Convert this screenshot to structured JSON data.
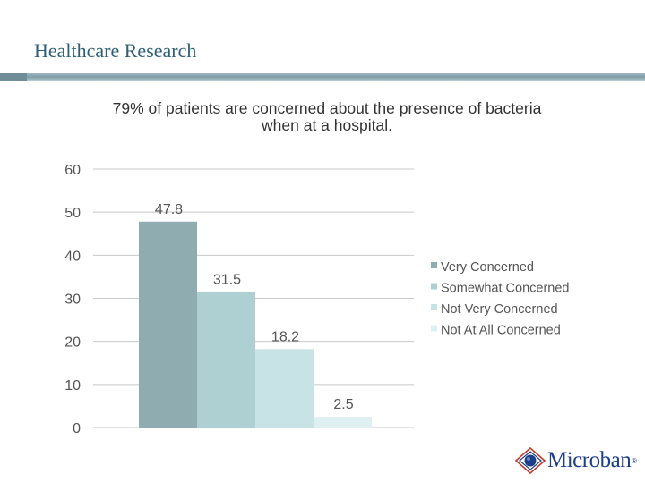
{
  "header": {
    "title": "Healthcare Research"
  },
  "logo": {
    "name": "Microban",
    "reg_mark": "®"
  },
  "colors": {
    "grid": "#c8c8c8",
    "axis_text": "#555555",
    "header_text": "#2f5f77"
  },
  "chart_data": {
    "type": "bar",
    "title": "79% of patients are concerned about the presence of bacteria when at a hospital.",
    "categories": [
      "Very Concerned",
      "Somewhat Concerned",
      "Not Very Concerned",
      "Not At All Concerned"
    ],
    "values": [
      47.8,
      31.5,
      18.2,
      2.5
    ],
    "value_labels": [
      "47.8",
      "31.5",
      "18.2",
      "2.5"
    ],
    "bar_colors": [
      "#8fadb0",
      "#aed0d3",
      "#c7e3e6",
      "#dff0f2"
    ],
    "ylim": [
      0,
      60
    ],
    "yticks": [
      0,
      10,
      20,
      30,
      40,
      50,
      60
    ],
    "ytick_labels": [
      "0",
      "10",
      "20",
      "30",
      "40",
      "50",
      "60"
    ],
    "grid": true,
    "legend_position": "right",
    "xlabel": "",
    "ylabel": ""
  }
}
